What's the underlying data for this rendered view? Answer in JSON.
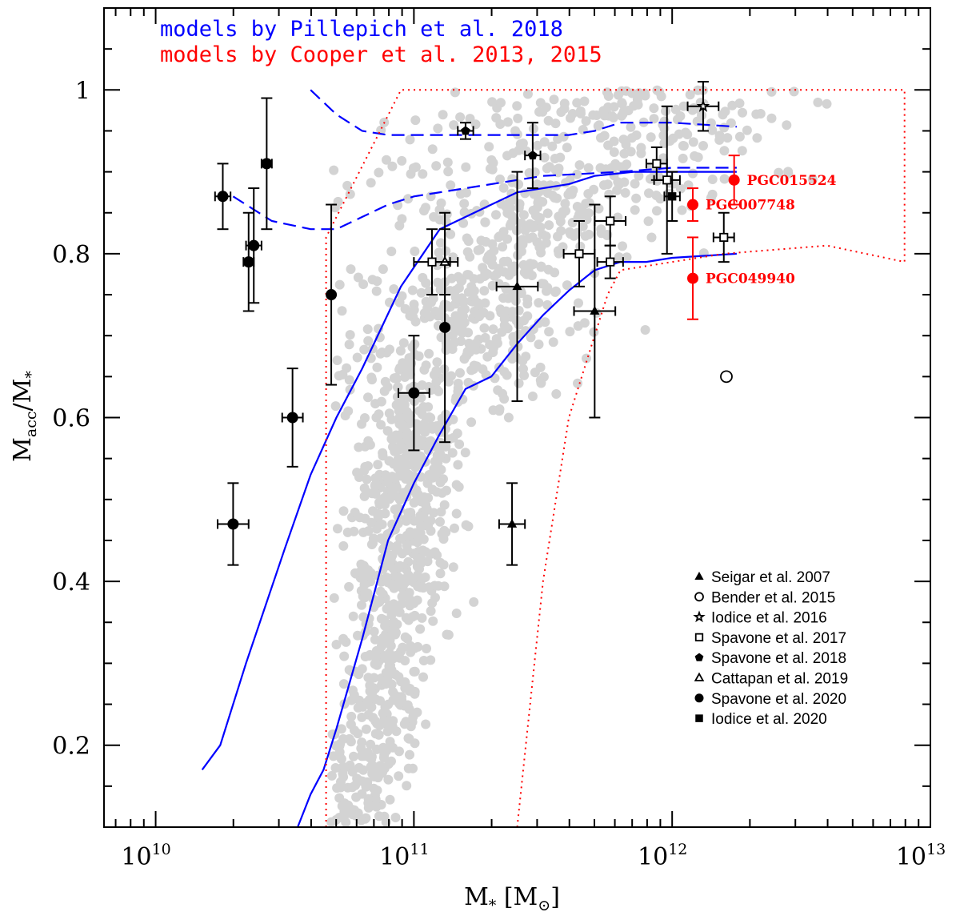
{
  "chart_data": {
    "type": "scatter",
    "title": "",
    "xlabel": {
      "main": "M",
      "sub": "*",
      "unit_open": " [M",
      "unit_sub": "⊙",
      "unit_close": "]"
    },
    "ylabel": {
      "main": "M",
      "sub1": "acc",
      "mid": "/M",
      "sub2": "*"
    },
    "xscale": "log",
    "xlim_log10": [
      9.8,
      13.0
    ],
    "ylim": [
      0.1,
      1.1
    ],
    "x_ticks": [
      {
        "base": "10",
        "exp": "10",
        "log": 10
      },
      {
        "base": "10",
        "exp": "11",
        "log": 11
      },
      {
        "base": "10",
        "exp": "12",
        "log": 12
      },
      {
        "base": "10",
        "exp": "13",
        "log": 13
      }
    ],
    "y_ticks": [
      {
        "label": "0.2",
        "value": 0.2
      },
      {
        "label": "0.4",
        "value": 0.4
      },
      {
        "label": "0.6",
        "value": 0.6
      },
      {
        "label": "0.8",
        "value": 0.8
      },
      {
        "label": "1",
        "value": 1.0
      }
    ],
    "model_legend": [
      {
        "text": "models by Pillepich et al. 2018",
        "color": "#0000ff"
      },
      {
        "text": "models by Cooper et al. 2013, 2015",
        "color": "#ff0000"
      }
    ],
    "legend": [
      {
        "label": "Seigar et al. 2007",
        "marker": "triangle",
        "filled": true
      },
      {
        "label": "Bender et al. 2015",
        "marker": "circle",
        "filled": false
      },
      {
        "label": "Iodice et al. 2016",
        "marker": "star",
        "filled": false
      },
      {
        "label": "Spavone et al. 2017",
        "marker": "square",
        "filled": false
      },
      {
        "label": "Spavone et al. 2018",
        "marker": "pentagon",
        "filled": true
      },
      {
        "label": "Cattapan et al. 2019",
        "marker": "triangle",
        "filled": false
      },
      {
        "label": "Spavone et al. 2020",
        "marker": "circle",
        "filled": true
      },
      {
        "label": "Iodice et al. 2020",
        "marker": "square",
        "filled": true
      }
    ],
    "colors": {
      "observations": "#000000",
      "highlight": "#ff0000",
      "pillepich": "#0000ff",
      "cooper": "#ff0000",
      "simulation": "#d3d3d3"
    },
    "pillepich_lines": [
      {
        "name": "Pillepich median",
        "style": "solid",
        "points": [
          [
            10.18,
            0.17
          ],
          [
            10.25,
            0.2
          ],
          [
            10.35,
            0.3
          ],
          [
            10.5,
            0.44
          ],
          [
            10.6,
            0.53
          ],
          [
            10.7,
            0.6
          ],
          [
            10.8,
            0.66
          ],
          [
            10.95,
            0.76
          ],
          [
            11.1,
            0.83
          ],
          [
            11.3,
            0.86
          ],
          [
            11.4,
            0.875
          ],
          [
            11.6,
            0.885
          ],
          [
            11.7,
            0.895
          ],
          [
            11.85,
            0.9
          ],
          [
            12.0,
            0.9
          ],
          [
            12.25,
            0.9
          ]
        ]
      },
      {
        "name": "Pillepich lower",
        "style": "solid",
        "points": [
          [
            10.55,
            0.1
          ],
          [
            10.6,
            0.14
          ],
          [
            10.65,
            0.17
          ],
          [
            10.7,
            0.22
          ],
          [
            10.8,
            0.33
          ],
          [
            10.9,
            0.45
          ],
          [
            11.0,
            0.52
          ],
          [
            11.1,
            0.58
          ],
          [
            11.2,
            0.635
          ],
          [
            11.3,
            0.65
          ],
          [
            11.4,
            0.69
          ],
          [
            11.5,
            0.725
          ],
          [
            11.6,
            0.755
          ],
          [
            11.7,
            0.78
          ],
          [
            11.8,
            0.79
          ],
          [
            11.9,
            0.79
          ],
          [
            12.0,
            0.795
          ],
          [
            12.25,
            0.8
          ]
        ]
      },
      {
        "name": "Pillepich upper dashed",
        "style": "dashed",
        "points": [
          [
            10.6,
            1.0
          ],
          [
            10.7,
            0.97
          ],
          [
            10.8,
            0.95
          ],
          [
            10.9,
            0.945
          ],
          [
            11.1,
            0.945
          ],
          [
            11.4,
            0.945
          ],
          [
            11.6,
            0.945
          ],
          [
            11.7,
            0.95
          ],
          [
            11.8,
            0.96
          ],
          [
            12.0,
            0.96
          ],
          [
            12.25,
            0.955
          ]
        ]
      },
      {
        "name": "Pillepich lower dashed",
        "style": "dashed",
        "points": [
          [
            10.3,
            0.87
          ],
          [
            10.45,
            0.84
          ],
          [
            10.6,
            0.83
          ],
          [
            10.7,
            0.83
          ],
          [
            10.8,
            0.845
          ],
          [
            10.9,
            0.86
          ],
          [
            11.0,
            0.87
          ],
          [
            11.2,
            0.88
          ],
          [
            11.5,
            0.895
          ],
          [
            11.8,
            0.9
          ],
          [
            12.0,
            0.905
          ],
          [
            12.25,
            0.905
          ]
        ]
      }
    ],
    "cooper_region": {
      "style": "dotted",
      "points": [
        [
          10.66,
          0.1
        ],
        [
          10.66,
          0.82
        ],
        [
          10.95,
          1.0
        ],
        [
          12.9,
          1.0
        ],
        [
          12.9,
          0.79
        ],
        [
          12.6,
          0.81
        ],
        [
          12.2,
          0.8
        ],
        [
          11.8,
          0.78
        ],
        [
          11.75,
          0.75
        ],
        [
          11.7,
          0.7
        ],
        [
          11.6,
          0.6
        ],
        [
          11.5,
          0.4
        ],
        [
          11.4,
          0.1
        ]
      ]
    },
    "annotations": [
      {
        "text": "PGC015524",
        "x": 12.24,
        "y": 0.89
      },
      {
        "text": "PGC007748",
        "x": 12.08,
        "y": 0.86
      },
      {
        "text": "PGC049940",
        "x": 12.08,
        "y": 0.77
      }
    ],
    "series": [
      {
        "name": "Spavone et al. 2020",
        "marker": "circle",
        "filled": true,
        "color": "#000000",
        "points": [
          {
            "x": 10.26,
            "y": 0.87,
            "xerr": 0.03,
            "yerr": 0.04
          },
          {
            "x": 10.36,
            "y": 0.79,
            "xerr": 0.02,
            "yerr": 0.06
          },
          {
            "x": 10.38,
            "y": 0.81,
            "xerr": 0.03,
            "yerr": 0.07
          },
          {
            "x": 10.43,
            "y": 0.91,
            "xerr": 0.02,
            "yerr": 0.08
          },
          {
            "x": 10.53,
            "y": 0.6,
            "xerr": 0.04,
            "yerr": 0.06
          },
          {
            "x": 10.3,
            "y": 0.47,
            "xerr": 0.06,
            "yerr": 0.05
          },
          {
            "x": 10.68,
            "y": 0.75,
            "xerr": 0.0,
            "yerr": 0.11
          },
          {
            "x": 11.0,
            "y": 0.63,
            "xerr": 0.06,
            "yerr": 0.07
          },
          {
            "x": 11.12,
            "y": 0.71,
            "xerr": 0.0,
            "yerr": 0.14
          }
        ]
      },
      {
        "name": "Spavone et al. 2018",
        "marker": "pentagon",
        "filled": true,
        "color": "#000000",
        "points": [
          {
            "x": 11.2,
            "y": 0.95,
            "xerr": 0.03,
            "yerr": 0.01
          },
          {
            "x": 11.46,
            "y": 0.92,
            "xerr": 0.03,
            "yerr": 0.04
          }
        ]
      },
      {
        "name": "Cattapan et al. 2019",
        "marker": "triangle",
        "filled": false,
        "color": "#000000",
        "points": [
          {
            "x": 11.12,
            "y": 0.79,
            "xerr": 0.05,
            "yerr": 0.04
          }
        ]
      },
      {
        "name": "Spavone et al. 2017",
        "marker": "square",
        "filled": false,
        "color": "#000000",
        "points": [
          {
            "x": 11.07,
            "y": 0.79,
            "xerr": 0.07,
            "yerr": 0.04
          },
          {
            "x": 11.64,
            "y": 0.8,
            "xerr": 0.06,
            "yerr": 0.04
          },
          {
            "x": 11.76,
            "y": 0.84,
            "xerr": 0.06,
            "yerr": 0.03
          },
          {
            "x": 11.76,
            "y": 0.79,
            "xerr": 0.05,
            "yerr": 0.02
          },
          {
            "x": 11.94,
            "y": 0.91,
            "xerr": 0.04,
            "yerr": 0.02
          },
          {
            "x": 11.98,
            "y": 0.89,
            "xerr": 0.05,
            "yerr": 0.09
          },
          {
            "x": 12.2,
            "y": 0.82,
            "xerr": 0.04,
            "yerr": 0.03
          }
        ]
      },
      {
        "name": "Iodice et al. 2020",
        "marker": "square",
        "filled": true,
        "color": "#000000",
        "points": [
          {
            "x": 12.0,
            "y": 0.87,
            "xerr": 0.03,
            "yerr": 0.03
          }
        ]
      },
      {
        "name": "Seigar et al. 2007",
        "marker": "triangle",
        "filled": true,
        "color": "#000000",
        "points": [
          {
            "x": 11.4,
            "y": 0.76,
            "xerr": 0.08,
            "yerr": 0.14
          },
          {
            "x": 11.38,
            "y": 0.47,
            "xerr": 0.05,
            "yerr": 0.05
          },
          {
            "x": 11.7,
            "y": 0.73,
            "xerr": 0.08,
            "yerr": 0.13
          }
        ]
      },
      {
        "name": "Iodice et al. 2016",
        "marker": "star",
        "filled": false,
        "color": "#000000",
        "points": [
          {
            "x": 12.12,
            "y": 0.98,
            "xerr": 0.06,
            "yerr": 0.03
          }
        ]
      },
      {
        "name": "Bender et al. 2015",
        "marker": "circle",
        "filled": false,
        "color": "#000000",
        "points": [
          {
            "x": 12.21,
            "y": 0.65,
            "xerr": 0.0,
            "yerr": 0.0
          }
        ]
      },
      {
        "name": "PGC galaxies",
        "marker": "circle",
        "filled": true,
        "color": "#ff0000",
        "points": [
          {
            "x": 12.24,
            "y": 0.89,
            "xerr": 0.0,
            "yerr": 0.03
          },
          {
            "x": 12.08,
            "y": 0.86,
            "xerr": 0.0,
            "yerr": 0.02
          },
          {
            "x": 12.08,
            "y": 0.77,
            "xerr": 0.0,
            "yerr": 0.05
          }
        ]
      }
    ]
  }
}
